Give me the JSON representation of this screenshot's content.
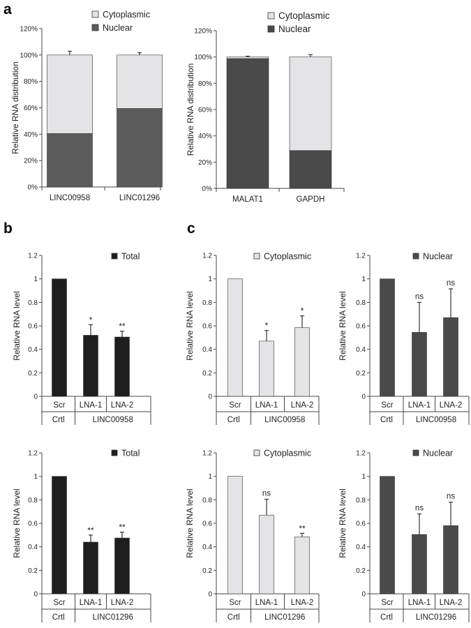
{
  "panel_labels": {
    "a": "a",
    "b": "b",
    "c": "c"
  },
  "colors": {
    "nuclear": "#5c5c5c",
    "nuclear_dark": "#4a4a4a",
    "cytoplasmic": "#e4e4e6",
    "total": "#1e1e1e",
    "axis": "#444444"
  },
  "chart_data": [
    {
      "id": "a1",
      "type": "bar",
      "stacked": true,
      "ylabel": "Relative RNA distribution",
      "yticks": [
        "0%",
        "20%",
        "40%",
        "60%",
        "80%",
        "100%",
        "120%"
      ],
      "ylim": [
        0,
        120
      ],
      "categories": [
        "LINC00958",
        "LINC01296"
      ],
      "legend": [
        "Cytoplasmic",
        "Nuclear"
      ],
      "series": [
        {
          "name": "Nuclear",
          "values": [
            40.5,
            59.5
          ]
        },
        {
          "name": "Cytoplasmic",
          "values": [
            59.5,
            40.5
          ],
          "error": [
            2.8,
            1.8
          ]
        }
      ]
    },
    {
      "id": "a2",
      "type": "bar",
      "stacked": true,
      "ylabel": "Relative RNA distribution",
      "yticks": [
        "0%",
        "20%",
        "40%",
        "60%",
        "80%",
        "100%",
        "120%"
      ],
      "ylim": [
        0,
        120
      ],
      "categories": [
        "MALAT1",
        "GAPDH"
      ],
      "legend": [
        "Cytoplasmic",
        "Nuclear"
      ],
      "series": [
        {
          "name": "Nuclear",
          "values": [
            98.8,
            28.8
          ]
        },
        {
          "name": "Cytoplasmic",
          "values": [
            1.2,
            71.2
          ],
          "error": [
            0.6,
            1.8
          ]
        }
      ]
    },
    {
      "id": "b1",
      "type": "bar",
      "legend": "Total",
      "fill": "total",
      "ylabel": "Relative RNA level",
      "yticks": [
        "0",
        "0.2",
        "0.4",
        "0.6",
        "0.8",
        "1",
        "1.2"
      ],
      "ylim": [
        0,
        1.2
      ],
      "categories": [
        "Scr",
        "LNA-1",
        "LNA-2"
      ],
      "values": [
        1,
        0.52,
        0.505
      ],
      "error": [
        0,
        0.09,
        0.05
      ],
      "significance": [
        "",
        "*",
        "**"
      ],
      "group_left": "Crtl",
      "group_right": "LINC00958"
    },
    {
      "id": "c1",
      "type": "bar",
      "legend": "Cytoplasmic",
      "fill": "cytoplasmic",
      "ylabel": "Relative RNA level",
      "yticks": [
        "0",
        "0.2",
        "0.4",
        "0.6",
        "0.8",
        "1",
        "1.2"
      ],
      "ylim": [
        0,
        1.2
      ],
      "categories": [
        "Scr",
        "LNA-1",
        "LNA-2"
      ],
      "values": [
        1,
        0.47,
        0.585
      ],
      "error": [
        0,
        0.09,
        0.1
      ],
      "significance": [
        "",
        "*",
        "*"
      ],
      "group_left": "Crtl",
      "group_right": "LINC00958"
    },
    {
      "id": "c2",
      "type": "bar",
      "legend": "Nuclear",
      "fill": "nuclear_dark",
      "ylabel": "Relative RNA level",
      "yticks": [
        "0",
        "0.2",
        "0.4",
        "0.6",
        "0.8",
        "1",
        "1.2"
      ],
      "ylim": [
        0,
        1.2
      ],
      "categories": [
        "Scr",
        "LNA-1",
        "LNA-2"
      ],
      "values": [
        1,
        0.545,
        0.67
      ],
      "error": [
        0,
        0.255,
        0.245
      ],
      "significance": [
        "",
        "ns",
        "ns"
      ],
      "group_left": "Crtl",
      "group_right": "LINC00958"
    },
    {
      "id": "b2",
      "type": "bar",
      "legend": "Total",
      "fill": "total",
      "ylabel": "Relative RNA level",
      "yticks": [
        "0",
        "0.2",
        "0.4",
        "0.6",
        "0.8",
        "1",
        "1.2"
      ],
      "ylim": [
        0,
        1.2
      ],
      "categories": [
        "Scr",
        "LNA-1",
        "LNA-2"
      ],
      "values": [
        1,
        0.44,
        0.475
      ],
      "error": [
        0,
        0.06,
        0.05
      ],
      "significance": [
        "",
        "**",
        "**"
      ],
      "group_left": "Crtl",
      "group_right": "LINC01296"
    },
    {
      "id": "c3",
      "type": "bar",
      "legend": "Cytoplasmic",
      "fill": "cytoplasmic",
      "ylabel": "Relative RNA level",
      "yticks": [
        "0",
        "0.2",
        "0.4",
        "0.6",
        "0.8",
        "1",
        "1.2"
      ],
      "ylim": [
        0,
        1.2
      ],
      "categories": [
        "Scr",
        "LNA-1",
        "LNA-2"
      ],
      "values": [
        1,
        0.67,
        0.485
      ],
      "error": [
        0,
        0.135,
        0.03
      ],
      "significance": [
        "",
        "ns",
        "**"
      ],
      "group_left": "Crtl",
      "group_right": "LINC01296"
    },
    {
      "id": "c4",
      "type": "bar",
      "legend": "Nuclear",
      "fill": "nuclear_dark",
      "ylabel": "Relative RNA level",
      "yticks": [
        "0",
        "0.2",
        "0.4",
        "0.6",
        "0.8",
        "1",
        "1.2"
      ],
      "ylim": [
        0,
        1.2
      ],
      "categories": [
        "Scr",
        "LNA-1",
        "LNA-2"
      ],
      "values": [
        1,
        0.505,
        0.58
      ],
      "error": [
        0,
        0.175,
        0.2
      ],
      "significance": [
        "",
        "ns",
        "ns"
      ],
      "group_left": "Crtl",
      "group_right": "LINC01296"
    }
  ]
}
